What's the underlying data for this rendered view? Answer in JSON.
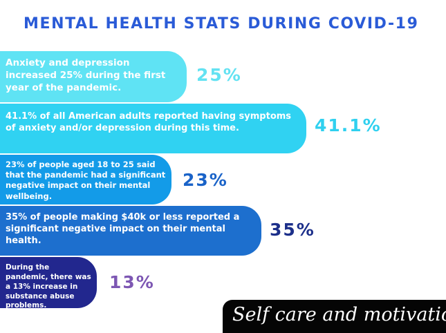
{
  "title": "MENTAL HEALTH STATS DURING COVID-19",
  "chart_data": {
    "type": "bar",
    "title": "MENTAL HEALTH STATS DURING COVID-19",
    "categories": [
      "Anxiety and depression increased 25% during the first year of the pandemic.",
      "41.1% of all American adults reported having symptoms of anxiety and/or depression during this time.",
      "23% of people aged 18 to 25 said that the pandemic had a significant negative impact on their mental wellbeing.",
      "35% of people making $40k or less reported a significant negative impact on their mental health.",
      "During the pandemic, there was a 13% increase in substance abuse problems."
    ],
    "values": [
      25,
      41.1,
      23,
      35,
      13
    ],
    "labels": [
      "25%",
      "41.1%",
      "23%",
      "35%",
      "13%"
    ],
    "colors": [
      "#5fe3f4",
      "#30d2f2",
      "#139be8",
      "#1d6fce",
      "#22278e"
    ],
    "label_colors": [
      "#63e2f2",
      "#2fd0ef",
      "#1a63c8",
      "#1c2f8a",
      "#7d57b3"
    ]
  },
  "footer": "Self care and motivation"
}
